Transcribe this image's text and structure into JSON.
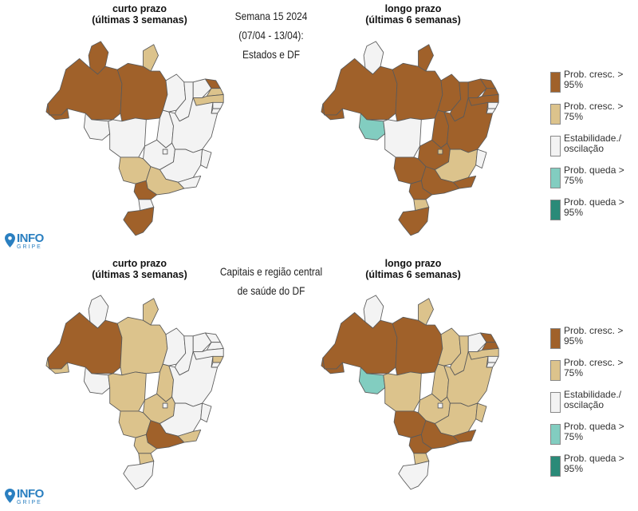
{
  "center_titles": {
    "top": [
      "Semana 15 2024",
      "(07/04 - 13/04):",
      "Estados e DF"
    ],
    "bottom": [
      "Capitais e região central",
      "de saúde do DF"
    ]
  },
  "map_headers": {
    "top_left": {
      "line1": "curto prazo",
      "line2": "(últimas 3 semanas)"
    },
    "top_right": {
      "line1": "longo prazo",
      "line2": "(últimas 6 semanas)"
    },
    "bottom_left": {
      "line1": "curto prazo",
      "line2": "(últimas 3 semanas)"
    },
    "bottom_right": {
      "line1": "longo prazo",
      "line2": "(últimas 6 semanas)"
    }
  },
  "legend": [
    {
      "key": "cresc95",
      "label": "Prob. cresc. > 95%",
      "color": "#a0612a"
    },
    {
      "key": "cresc75",
      "label": "Prob. cresc. > 75%",
      "color": "#dcc38c"
    },
    {
      "key": "estavel",
      "label": "Estabilidade./ oscilação",
      "color": "#f3f3f3"
    },
    {
      "key": "queda75",
      "label": "Prob. queda > 75%",
      "color": "#82cdc0"
    },
    {
      "key": "queda95",
      "label": "Prob. queda > 95%",
      "color": "#2a8a78"
    }
  ],
  "logo": {
    "line1": "INFO",
    "line2": "GRIPE",
    "color": "#2a7fc0"
  },
  "maps": {
    "top_left": {
      "AC": "cresc95",
      "AM": "cresc95",
      "RR": "cresc95",
      "AP": "cresc75",
      "PA": "cresc95",
      "RO": "estavel",
      "MT": "estavel",
      "TO": "estavel",
      "MA": "estavel",
      "PI": "estavel",
      "CE": "estavel",
      "RN": "cresc95",
      "PB": "cresc75",
      "PE": "cresc75",
      "AL": "estavel",
      "SE": "estavel",
      "BA": "estavel",
      "GO": "estavel",
      "DF": "estavel",
      "MS": "cresc75",
      "MG": "estavel",
      "ES": "estavel",
      "RJ": "estavel",
      "SP": "cresc75",
      "PR": "cresc95",
      "SC": "estavel",
      "RS": "cresc95"
    },
    "top_right": {
      "AC": "cresc95",
      "AM": "cresc95",
      "RR": "estavel",
      "AP": "cresc95",
      "PA": "cresc95",
      "RO": "queda75",
      "MT": "estavel",
      "TO": "cresc95",
      "MA": "cresc95",
      "PI": "cresc95",
      "CE": "cresc95",
      "RN": "cresc95",
      "PB": "cresc95",
      "PE": "cresc95",
      "AL": "estavel",
      "SE": "estavel",
      "BA": "cresc95",
      "GO": "cresc95",
      "DF": "cresc75",
      "MS": "cresc95",
      "MG": "cresc75",
      "ES": "estavel",
      "RJ": "cresc95",
      "SP": "cresc95",
      "PR": "cresc95",
      "SC": "cresc75",
      "RS": "cresc95"
    },
    "bottom_left": {
      "AC": "cresc75",
      "AM": "cresc95",
      "RR": "estavel",
      "AP": "cresc75",
      "PA": "cresc75",
      "RO": "estavel",
      "MT": "cresc75",
      "TO": "cresc75",
      "MA": "estavel",
      "PI": "estavel",
      "CE": "estavel",
      "RN": "estavel",
      "PB": "estavel",
      "PE": "estavel",
      "AL": "cresc75",
      "SE": "estavel",
      "BA": "estavel",
      "GO": "cresc75",
      "DF": "estavel",
      "MS": "cresc75",
      "MG": "estavel",
      "ES": "estavel",
      "RJ": "cresc75",
      "SP": "cresc95",
      "PR": "cresc75",
      "SC": "cresc75",
      "RS": "estavel"
    },
    "bottom_right": {
      "AC": "cresc95",
      "AM": "cresc95",
      "RR": "estavel",
      "AP": "cresc75",
      "PA": "cresc95",
      "RO": "queda75",
      "MT": "cresc75",
      "TO": "cresc75",
      "MA": "cresc75",
      "PI": "cresc75",
      "CE": "estavel",
      "RN": "cresc95",
      "PB": "cresc95",
      "PE": "cresc75",
      "AL": "estavel",
      "SE": "estavel",
      "BA": "cresc75",
      "GO": "cresc75",
      "DF": "estavel",
      "MS": "cresc95",
      "MG": "cresc75",
      "ES": "cresc75",
      "RJ": "cresc95",
      "SP": "cresc95",
      "PR": "cresc95",
      "SC": "cresc75",
      "RS": "estavel"
    }
  }
}
